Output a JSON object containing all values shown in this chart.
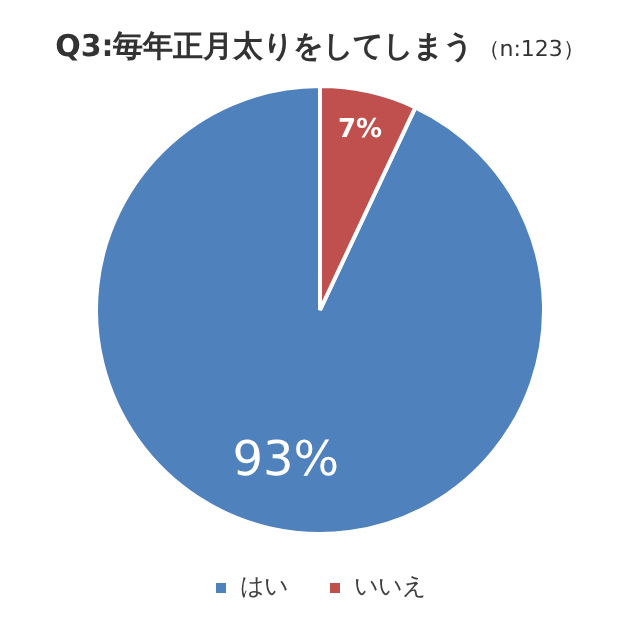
{
  "chart_data": {
    "type": "pie",
    "title": "Q3:毎年正月太りをしてしまう",
    "subtitle": "（n:123）",
    "categories": [
      "はい",
      "いいえ"
    ],
    "values": [
      93,
      7
    ],
    "colors": [
      "#4f81bd",
      "#c0504d"
    ],
    "value_labels": [
      "93%",
      "7%"
    ],
    "legend": "bottom"
  }
}
